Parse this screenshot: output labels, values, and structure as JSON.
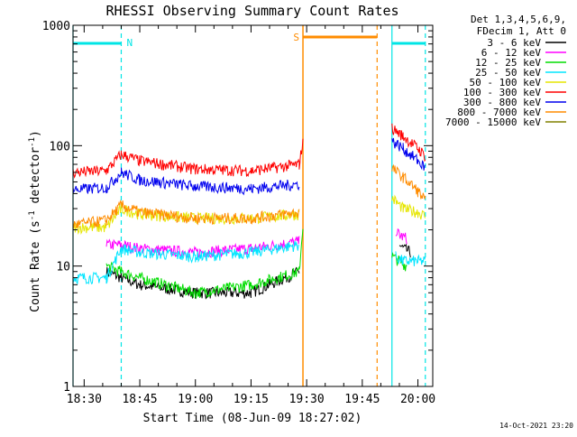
{
  "chart_data": {
    "type": "line",
    "title": "RHESSI Observing Summary Count Rates",
    "xlabel": "Start Time (08-Jun-09 18:27:02)",
    "ylabel_main": "Count Rate (s",
    "ylabel_sup1": "-1",
    "ylabel_mid": " detector",
    "ylabel_sup2": "-1",
    "ylabel_end": ")",
    "yscale": "log",
    "ylim": [
      1,
      1000
    ],
    "xlim": [
      "18:27",
      "20:04"
    ],
    "x_ticks": [
      "18:30",
      "18:45",
      "19:00",
      "19:15",
      "19:30",
      "19:45",
      "20:00"
    ],
    "y_ticks": [
      "1",
      "10",
      "100",
      "1000"
    ],
    "timestamp": "14-Oct-2021 23:20",
    "legend": {
      "title_line1": "Det 1,3,4,5,6,9,",
      "title_line2": "FDecim 1, Att 0",
      "position": "right"
    },
    "annotations": {
      "night_label": "N",
      "saa_label": "S",
      "night_color": "#00e5e5",
      "saa_color": "#ff8c00"
    },
    "intervals": {
      "night": [
        [
          "18:27",
          "18:40"
        ],
        [
          "19:53",
          "20:02"
        ]
      ],
      "saa": [
        [
          "19:29",
          "19:49"
        ]
      ],
      "gap": [
        "19:29",
        "19:52"
      ]
    },
    "series": [
      {
        "name": "3 - 6 keV",
        "color": "#000000",
        "segments": [
          {
            "x": [
              "18:36",
              "18:40",
              "18:45",
              "19:00",
              "19:15",
              "19:28"
            ],
            "y": [
              9,
              8,
              7,
              6,
              6,
              9
            ]
          },
          {
            "x": [
              "19:55",
              "19:56",
              "19:58"
            ],
            "y": [
              15,
              14,
              13
            ]
          }
        ]
      },
      {
        "name": "6 - 12 keV",
        "color": "#ff00ff",
        "segments": [
          {
            "x": [
              "18:36",
              "18:40",
              "18:45",
              "19:00",
              "19:15",
              "19:28"
            ],
            "y": [
              15,
              15,
              14,
              13,
              14,
              16
            ]
          },
          {
            "x": [
              "19:54",
              "19:55",
              "19:57"
            ],
            "y": [
              20,
              18,
              17
            ]
          }
        ]
      },
      {
        "name": "12 - 25 keV",
        "color": "#00dd00",
        "segments": [
          {
            "x": [
              "18:27",
              "18:36"
            ],
            "y": [
              1,
              1
            ]
          },
          {
            "x": [
              "18:36",
              "18:40",
              "18:45",
              "19:00",
              "19:15",
              "19:28",
              "19:29"
            ],
            "y": [
              10,
              9,
              8,
              6,
              7,
              9,
              22
            ]
          },
          {
            "x": [
              "19:53",
              "19:55",
              "19:57"
            ],
            "y": [
              12,
              11,
              10
            ]
          },
          {
            "x": [
              "19:57",
              "20:02"
            ],
            "y": [
              1,
              1
            ]
          }
        ]
      },
      {
        "name": "25 - 50 keV",
        "color": "#00e5ff",
        "segments": [
          {
            "x": [
              "18:27",
              "18:36",
              "18:40",
              "18:45",
              "19:00",
              "19:15",
              "19:28"
            ],
            "y": [
              8,
              8,
              14,
              13,
              12,
              13,
              15
            ]
          },
          {
            "x": [
              "19:54",
              "19:56",
              "20:00",
              "20:02"
            ],
            "y": [
              12,
              11,
              11,
              11
            ]
          }
        ]
      },
      {
        "name": "50 - 100 keV",
        "color": "#e6e600",
        "segments": [
          {
            "x": [
              "18:27",
              "18:36",
              "18:40",
              "18:45",
              "19:00",
              "19:15",
              "19:28"
            ],
            "y": [
              21,
              21,
              30,
              27,
              25,
              25,
              27
            ]
          },
          {
            "x": [
              "19:53",
              "19:56",
              "20:00",
              "20:02"
            ],
            "y": [
              37,
              30,
              28,
              26
            ]
          }
        ]
      },
      {
        "name": "100 - 300 keV",
        "color": "#ff0000",
        "segments": [
          {
            "x": [
              "18:27",
              "18:36",
              "18:40",
              "18:45",
              "19:00",
              "19:15",
              "19:28",
              "19:29"
            ],
            "y": [
              60,
              62,
              85,
              75,
              64,
              62,
              70,
              110
            ]
          },
          {
            "x": [
              "19:53",
              "19:56",
              "20:00",
              "20:02"
            ],
            "y": [
              140,
              120,
              95,
              82
            ]
          }
        ]
      },
      {
        "name": "300 - 800 keV",
        "color": "#0000ee",
        "segments": [
          {
            "x": [
              "18:27",
              "18:36",
              "18:40",
              "18:45",
              "19:00",
              "19:15",
              "19:28"
            ],
            "y": [
              43,
              45,
              60,
              52,
              46,
              44,
              48
            ]
          },
          {
            "x": [
              "19:53",
              "19:56",
              "20:00",
              "20:02"
            ],
            "y": [
              110,
              95,
              75,
              65
            ]
          }
        ]
      },
      {
        "name": "800 - 7000 keV",
        "color": "#ff8c00",
        "segments": [
          {
            "x": [
              "18:27",
              "18:36",
              "18:40",
              "18:45",
              "19:00",
              "19:15",
              "19:28"
            ],
            "y": [
              22,
              24,
              32,
              28,
              25,
              25,
              28
            ]
          },
          {
            "x": [
              "19:53",
              "19:56",
              "20:00",
              "20:02"
            ],
            "y": [
              65,
              55,
              42,
              35
            ]
          }
        ]
      },
      {
        "name": "7000 - 15000 keV",
        "color": "#808000",
        "segments": []
      }
    ]
  }
}
